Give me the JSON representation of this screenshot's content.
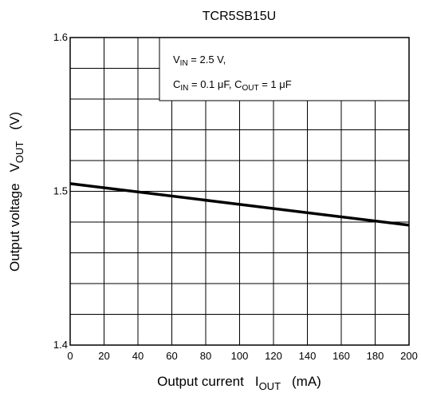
{
  "chart_data": {
    "type": "line",
    "title": "TCR5SB15U",
    "xlabel": {
      "main": "Output current",
      "sym": "I",
      "sub": "OUT",
      "unit": "(mA)"
    },
    "ylabel": {
      "main": "Output voltage",
      "sym": "V",
      "sub": "OUT",
      "unit": "(V)"
    },
    "xlim": [
      0,
      200
    ],
    "ylim": [
      1.4,
      1.6
    ],
    "x_ticks": [
      "0",
      "20",
      "40",
      "60",
      "80",
      "100",
      "120",
      "140",
      "160",
      "180",
      "200"
    ],
    "y_ticks": [
      "1.4",
      "1.5",
      "1.6"
    ],
    "grid": true,
    "series": [
      {
        "x": [
          0,
          200
        ],
        "y": [
          1.505,
          1.478
        ]
      }
    ],
    "annotation": {
      "line1": {
        "sym": "V",
        "sub": "IN",
        "rest": " = 2.5 V,"
      },
      "line2": {
        "sym1": "C",
        "sub1": "IN",
        "mid": " = 0.1 μF, ",
        "sym2": "C",
        "sub2": "OUT",
        "rest": " = 1 μF"
      }
    }
  }
}
